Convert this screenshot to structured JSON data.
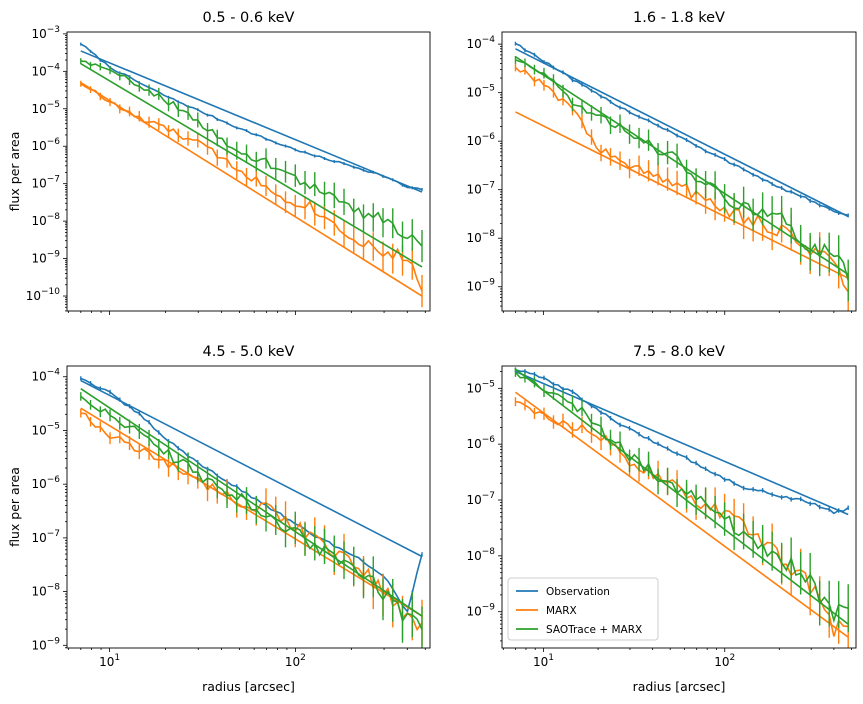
{
  "colors": {
    "observation": "#1f77b4",
    "marx": "#ff7f0e",
    "saotrace": "#2ca02c"
  },
  "legend": [
    "Observation",
    "MARX",
    "SAOTrace + MARX"
  ],
  "shared_xlabel": "radius [arcsec]",
  "shared_ylabel": "flux per area",
  "chart_data": [
    {
      "type": "line",
      "title": "0.5 - 0.6 keV",
      "xscale": "log",
      "yscale": "log",
      "xlim": [
        5.9,
        530
      ],
      "ylim_exp": [
        -10.4,
        -2.95
      ],
      "xlabel": "",
      "ylabel": "flux per area",
      "yticks_exp": [
        -10,
        -9,
        -8,
        -7,
        -6,
        -5,
        -4,
        -3
      ],
      "xticks": [],
      "series": [
        {
          "name": "Observation",
          "role": "data",
          "x": [
            7,
            10,
            15,
            20,
            30,
            50,
            80,
            120,
            200,
            300,
            400,
            480
          ],
          "y": [
            0.00055,
            0.00013,
            4.5e-05,
            2.2e-05,
            9e-06,
            3e-06,
            1.2e-06,
            6e-07,
            3e-07,
            1.6e-07,
            8e-08,
            7e-08
          ]
        },
        {
          "name": "Observation",
          "role": "model",
          "x": [
            7,
            480
          ],
          "y": [
            0.00035,
            6e-08
          ]
        },
        {
          "name": "MARX",
          "role": "data",
          "x": [
            7,
            10,
            15,
            20,
            30,
            50,
            80,
            120,
            200,
            300,
            400,
            480
          ],
          "y": [
            5e-05,
            1.5e-05,
            5e-06,
            3e-06,
            1.2e-06,
            2.5e-07,
            5e-08,
            2.5e-08,
            4e-09,
            1.5e-09,
            1e-09,
            2e-10
          ]
        },
        {
          "name": "MARX",
          "role": "model",
          "x": [
            7,
            480
          ],
          "y": [
            5e-05,
            1e-10
          ]
        },
        {
          "name": "SAOTrace + MARX",
          "role": "data",
          "x": [
            7,
            10,
            15,
            20,
            30,
            50,
            80,
            120,
            200,
            300,
            400,
            480
          ],
          "y": [
            0.0002,
            0.0001,
            4e-05,
            1.8e-05,
            4e-06,
            8e-07,
            2.5e-07,
            9e-08,
            2e-08,
            1.2e-08,
            4e-09,
            2e-09
          ]
        },
        {
          "name": "SAOTrace + MARX",
          "role": "model",
          "x": [
            7,
            480
          ],
          "y": [
            0.00016,
            6e-10
          ]
        }
      ]
    },
    {
      "type": "line",
      "title": "1.6 - 1.8 keV",
      "xscale": "log",
      "yscale": "log",
      "xlim": [
        5.9,
        530
      ],
      "ylim_exp": [
        -9.5,
        -3.75
      ],
      "xlabel": "",
      "ylabel": "",
      "yticks_exp": [
        -9,
        -8,
        -7,
        -6,
        -5,
        -4
      ],
      "xticks": [],
      "series": [
        {
          "name": "Observation",
          "role": "data",
          "x": [
            7,
            10,
            15,
            20,
            30,
            50,
            80,
            120,
            200,
            300,
            400,
            480
          ],
          "y": [
            0.000105,
            4.5e-05,
            1.7e-05,
            9e-06,
            4e-06,
            1.6e-06,
            6e-07,
            3e-07,
            1.1e-07,
            6e-08,
            3.5e-08,
            2.8e-08
          ]
        },
        {
          "name": "Observation",
          "role": "model",
          "x": [
            7,
            480
          ],
          "y": [
            8e-05,
            2.8e-08
          ]
        },
        {
          "name": "MARX",
          "role": "data",
          "x": [
            7,
            10,
            15,
            20,
            30,
            50,
            80,
            120,
            200,
            300,
            400,
            480
          ],
          "y": [
            3.5e-05,
            1.5e-05,
            4e-06,
            7e-07,
            3e-07,
            1.5e-07,
            6e-08,
            3e-08,
            1.5e-08,
            6e-09,
            3e-09,
            8e-10
          ]
        },
        {
          "name": "MARX",
          "role": "model",
          "x": [
            7,
            480
          ],
          "y": [
            4e-06,
            1.5e-09
          ]
        },
        {
          "name": "SAOTrace + MARX",
          "role": "data",
          "x": [
            7,
            10,
            15,
            20,
            30,
            50,
            80,
            120,
            200,
            300,
            400,
            480
          ],
          "y": [
            5e-05,
            2.5e-05,
            6e-06,
            3e-06,
            1.5e-06,
            5e-07,
            1.2e-07,
            5e-08,
            2.5e-08,
            7e-09,
            4e-09,
            2e-09
          ]
        },
        {
          "name": "SAOTrace + MARX",
          "role": "model",
          "x": [
            7,
            480
          ],
          "y": [
            5.5e-05,
            1.8e-09
          ]
        }
      ]
    },
    {
      "type": "line",
      "title": "4.5 - 5.0 keV",
      "xscale": "log",
      "yscale": "log",
      "xlim": [
        5.9,
        530
      ],
      "ylim_exp": [
        -9.05,
        -3.8
      ],
      "xlabel": "radius [arcsec]",
      "ylabel": "flux per area",
      "yticks_exp": [
        -9,
        -8,
        -7,
        -6,
        -5,
        -4
      ],
      "xticks": [
        10,
        100
      ],
      "series": [
        {
          "name": "Observation",
          "role": "data",
          "x": [
            7,
            10,
            15,
            20,
            30,
            50,
            80,
            120,
            200,
            300,
            400,
            480
          ],
          "y": [
            9.5e-05,
            5e-05,
            1.8e-05,
            7e-06,
            2.5e-06,
            8e-07,
            3e-07,
            1.2e-07,
            5e-08,
            2e-08,
            4e-09,
            5e-08
          ]
        },
        {
          "name": "Observation",
          "role": "model",
          "x": [
            7,
            480
          ],
          "y": [
            8.5e-05,
            4.5e-08
          ]
        },
        {
          "name": "MARX",
          "role": "data",
          "x": [
            7,
            10,
            15,
            20,
            30,
            50,
            80,
            120,
            200,
            300,
            400,
            480
          ],
          "y": [
            2.2e-05,
            8e-06,
            4e-06,
            2.5e-06,
            1.2e-06,
            5e-07,
            3e-07,
            1e-07,
            3e-08,
            1.2e-08,
            3e-09,
            1.8e-09
          ]
        },
        {
          "name": "MARX",
          "role": "model",
          "x": [
            7,
            480
          ],
          "y": [
            2.6e-05,
            3.5e-09
          ]
        },
        {
          "name": "SAOTrace + MARX",
          "role": "data",
          "x": [
            7,
            10,
            15,
            20,
            30,
            50,
            80,
            120,
            200,
            300,
            400,
            480
          ],
          "y": [
            4.5e-05,
            2e-05,
            8e-06,
            4e-06,
            1.5e-06,
            6e-07,
            2e-07,
            8e-08,
            3e-08,
            1e-08,
            3e-09,
            2e-09
          ]
        },
        {
          "name": "SAOTrace + MARX",
          "role": "model",
          "x": [
            7,
            480
          ],
          "y": [
            6e-05,
            3.5e-09
          ]
        }
      ]
    },
    {
      "type": "line",
      "title": "7.5 - 8.0 keV",
      "xscale": "log",
      "yscale": "log",
      "xlim": [
        5.9,
        530
      ],
      "ylim_exp": [
        -9.65,
        -4.6
      ],
      "xlabel": "radius [arcsec]",
      "ylabel": "",
      "yticks_exp": [
        -9,
        -8,
        -7,
        -6,
        -5
      ],
      "xticks": [
        10,
        100
      ],
      "series": [
        {
          "name": "Observation",
          "role": "data",
          "x": [
            7,
            10,
            15,
            20,
            30,
            50,
            80,
            120,
            200,
            300,
            400,
            480
          ],
          "y": [
            2.2e-05,
            1.5e-05,
            8e-06,
            4e-06,
            1.8e-06,
            8e-07,
            3.5e-07,
            1.8e-07,
            1.2e-07,
            9e-08,
            6e-08,
            7e-08
          ]
        },
        {
          "name": "Observation",
          "role": "model",
          "x": [
            7,
            480
          ],
          "y": [
            2e-05,
            5.5e-08
          ]
        },
        {
          "name": "MARX",
          "role": "data",
          "x": [
            7,
            10,
            15,
            20,
            30,
            50,
            80,
            120,
            200,
            300,
            400,
            480
          ],
          "y": [
            6e-06,
            3e-06,
            2e-06,
            1.5e-06,
            5e-07,
            2e-07,
            8e-08,
            4e-08,
            1e-08,
            3e-09,
            5e-10,
            6e-10
          ]
        },
        {
          "name": "MARX",
          "role": "model",
          "x": [
            7,
            480
          ],
          "y": [
            8.5e-06,
            3.5e-10
          ]
        },
        {
          "name": "SAOTrace + MARX",
          "role": "data",
          "x": [
            7,
            10,
            15,
            20,
            30,
            50,
            80,
            120,
            200,
            300,
            400,
            480
          ],
          "y": [
            2e-05,
            1e-05,
            5e-06,
            2e-06,
            6e-07,
            2e-07,
            8e-08,
            3e-08,
            1e-08,
            3e-09,
            1e-09,
            8e-10
          ]
        },
        {
          "name": "SAOTrace + MARX",
          "role": "model",
          "x": [
            7,
            480
          ],
          "y": [
            2.2e-05,
            6e-10
          ]
        }
      ]
    }
  ]
}
